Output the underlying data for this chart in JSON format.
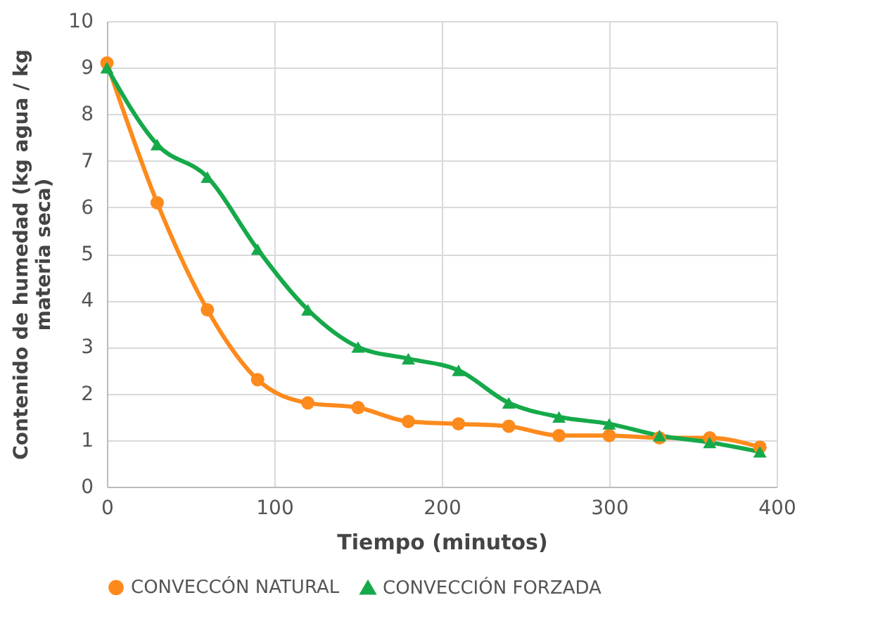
{
  "chart_data": {
    "type": "line",
    "xlabel": "Tiempo (minutos)",
    "ylabel": "Contenido de humedad (kg agua / kg materia seca)",
    "xlim": [
      0,
      400
    ],
    "xticks": [
      0,
      100,
      200,
      300,
      400
    ],
    "ylim": [
      0,
      10
    ],
    "yticks": [
      0,
      1,
      2,
      3,
      4,
      5,
      6,
      7,
      8,
      9,
      10
    ],
    "grid": true,
    "legend": "bottom",
    "series": [
      {
        "name": "CONVECCÓN NATURAL",
        "color": "#fd8a1c",
        "marker": "circle",
        "x": [
          0,
          30,
          60,
          90,
          120,
          150,
          180,
          210,
          240,
          270,
          300,
          330,
          360,
          390
        ],
        "values": [
          9.1,
          6.1,
          3.8,
          2.3,
          1.8,
          1.7,
          1.4,
          1.35,
          1.3,
          1.1,
          1.1,
          1.05,
          1.05,
          0.85
        ]
      },
      {
        "name": "CONVECCIÓN FORZADA",
        "color": "#15a94a",
        "marker": "triangle",
        "x": [
          0,
          30,
          60,
          90,
          120,
          150,
          180,
          210,
          240,
          270,
          300,
          330,
          360,
          390
        ],
        "values": [
          9.0,
          7.35,
          6.65,
          5.1,
          3.8,
          3.0,
          2.75,
          2.5,
          1.8,
          1.5,
          1.35,
          1.1,
          0.95,
          0.75
        ]
      }
    ]
  }
}
